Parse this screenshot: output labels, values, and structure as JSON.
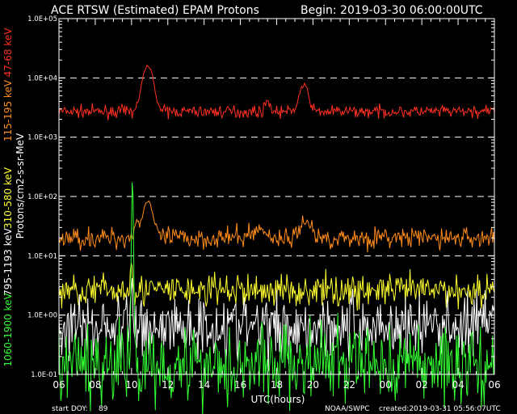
{
  "chart_data": {
    "type": "line",
    "title": "ACE RTSW (Estimated) EPAM Protons",
    "begin_label": "Begin: 2019-03-30 06:00:00UTC",
    "xlabel": "UTC(hours)",
    "ylabel": "Protons/cm2-s-sr-MeV",
    "y_scale": "log",
    "ylim": [
      0.1,
      100000
    ],
    "x_range_hours": [
      0,
      24
    ],
    "x_ticks": [
      "06",
      "08",
      "10",
      "12",
      "14",
      "16",
      "18",
      "20",
      "22",
      "00",
      "02",
      "04",
      "06"
    ],
    "y_ticks": [
      "1.0E+05",
      "1.0E+04",
      "1.0E+03",
      "1.0E+02",
      "1.0E+01",
      "1.0E+00",
      "1.0E-01"
    ],
    "y_tick_values": [
      100000,
      10000,
      1000,
      100,
      10,
      1,
      0.1
    ],
    "grid": "dashed horizontal at decades",
    "series": [
      {
        "name": "47-68 keV",
        "color": "#ff3020",
        "baseline": 2700,
        "noise": 0.05,
        "peaks": [
          [
            4.9,
            16000,
            0.25
          ],
          [
            11.5,
            4200,
            0.12
          ],
          [
            13.5,
            7500,
            0.22
          ]
        ]
      },
      {
        "name": "115-195 keV",
        "color": "#ff8c1a",
        "baseline": 20,
        "noise": 0.09,
        "peaks": [
          [
            4.9,
            85,
            0.22
          ],
          [
            4.3,
            35,
            0.15
          ],
          [
            11.0,
            28,
            0.35
          ],
          [
            13.6,
            40,
            0.25
          ]
        ]
      },
      {
        "name": "310-580 keV",
        "color": "#ffff30",
        "baseline": 2.6,
        "noise": 0.14,
        "peaks": [
          [
            4.0,
            9,
            0.05
          ]
        ]
      },
      {
        "name": "795-1193 keV",
        "color": "#ffffff",
        "baseline": 0.65,
        "noise": 0.28,
        "peaks": [
          [
            4.0,
            3,
            0.05
          ]
        ]
      },
      {
        "name": "1060-1900 keV",
        "color": "#33ff33",
        "baseline": 0.15,
        "noise": 0.35,
        "peaks": [
          [
            4.05,
            200,
            0.03
          ]
        ]
      }
    ]
  },
  "footer": {
    "start_doy_label": "start DOY:",
    "start_doy_value": "89",
    "source": "NOAA/SWPC",
    "created": "created:2019-03-31 05:56:07UTC"
  }
}
